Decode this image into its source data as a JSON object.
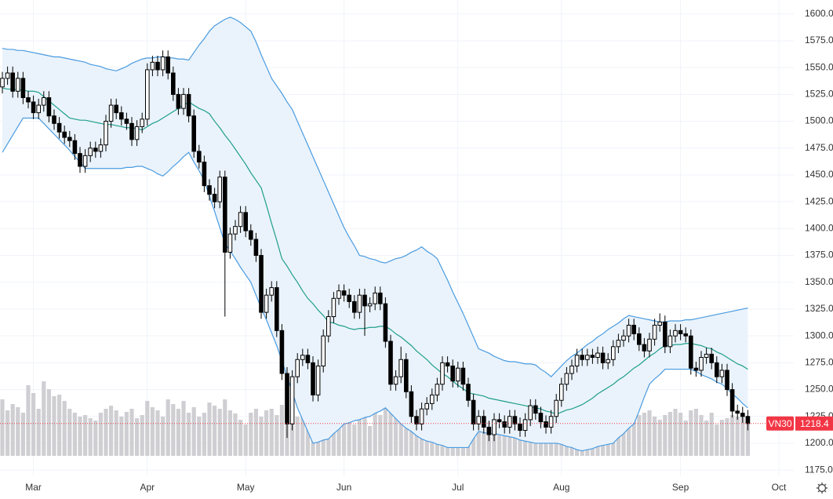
{
  "chart_data": {
    "type": "candlestick",
    "categories": [
      null,
      null,
      null,
      null,
      null,
      null,
      "Mar",
      null,
      null,
      null,
      null,
      null,
      null,
      null,
      null,
      null,
      null,
      null,
      null,
      null,
      null,
      null,
      null,
      null,
      null,
      null,
      null,
      null,
      "Apr",
      null,
      null,
      null,
      null,
      null,
      null,
      null,
      null,
      null,
      null,
      null,
      null,
      null,
      null,
      null,
      null,
      null,
      null,
      "May",
      null,
      null,
      null,
      null,
      null,
      null,
      null,
      null,
      null,
      null,
      null,
      null,
      null,
      null,
      null,
      null,
      null,
      null,
      "Jun",
      null,
      null,
      null,
      null,
      null,
      null,
      null,
      null,
      null,
      null,
      null,
      null,
      null,
      null,
      null,
      null,
      null,
      null,
      null,
      null,
      null,
      "Jul",
      null,
      null,
      null,
      null,
      null,
      null,
      null,
      null,
      null,
      null,
      null,
      null,
      null,
      null,
      null,
      null,
      null,
      null,
      null,
      "Aug",
      null,
      null,
      null,
      null,
      null,
      null,
      null,
      null,
      null,
      null,
      null,
      null,
      null,
      null,
      null,
      null,
      null,
      null,
      null,
      null,
      null,
      null,
      "Sep",
      null,
      null,
      null,
      null,
      null,
      null,
      null,
      null,
      null,
      null,
      null,
      null,
      null,
      null,
      null,
      null,
      null,
      null,
      "Oct"
    ],
    "open": [
      1532,
      1540,
      1545,
      1528,
      1540,
      1522,
      1518,
      1508,
      1515,
      1522,
      1505,
      1498,
      1490,
      1485,
      1482,
      1470,
      1458,
      1468,
      1475,
      1472,
      1478,
      1500,
      1515,
      1508,
      1502,
      1498,
      1483,
      1495,
      1502,
      1548,
      1555,
      1548,
      1560,
      1545,
      1525,
      1512,
      1525,
      1505,
      1472,
      1462,
      1440,
      1432,
      1425,
      1448,
      1378,
      1395,
      1402,
      1415,
      1398,
      1390,
      1375,
      1322,
      1338,
      1345,
      1305,
      1265,
      1218,
      1262,
      1278,
      1282,
      1275,
      1245,
      1272,
      1300,
      1318,
      1335,
      1342,
      1338,
      1332,
      1322,
      1338,
      1328,
      1330,
      1340,
      1330,
      1295,
      1255,
      1262,
      1278,
      1248,
      1225,
      1218,
      1232,
      1237,
      1245,
      1255,
      1275,
      1272,
      1258,
      1270,
      1255,
      1240,
      1218,
      1225,
      1215,
      1208,
      1222,
      1220,
      1215,
      1225,
      1218,
      1212,
      1222,
      1235,
      1228,
      1220,
      1215,
      1225,
      1240,
      1255,
      1265,
      1272,
      1282,
      1278,
      1282,
      1280,
      1284,
      1275,
      1278,
      1290,
      1296,
      1300,
      1310,
      1302,
      1292,
      1286,
      1297,
      1310,
      1313,
      1290,
      1300,
      1305,
      1302,
      1300,
      1270,
      1268,
      1280,
      1283,
      1275,
      1262,
      1268,
      1250,
      1230,
      1228,
      1225,
      null,
      null,
      null,
      null,
      null,
      null
    ],
    "high": [
      1546,
      1551,
      1551,
      1546,
      1546,
      1528,
      1524,
      1521,
      1528,
      1528,
      1511,
      1504,
      1496,
      1491,
      1488,
      1476,
      1474,
      1481,
      1481,
      1484,
      1506,
      1521,
      1521,
      1514,
      1508,
      1504,
      1501,
      1508,
      1554,
      1561,
      1561,
      1566,
      1566,
      1551,
      1531,
      1531,
      1531,
      1511,
      1478,
      1468,
      1446,
      1438,
      1454,
      1454,
      1401,
      1408,
      1421,
      1421,
      1404,
      1396,
      1381,
      1344,
      1351,
      1351,
      1311,
      1271,
      1268,
      1284,
      1288,
      1288,
      1281,
      1278,
      1306,
      1324,
      1341,
      1348,
      1348,
      1344,
      1338,
      1344,
      1344,
      1336,
      1346,
      1346,
      1336,
      1301,
      1268,
      1290,
      1284,
      1254,
      1231,
      1238,
      1243,
      1251,
      1261,
      1281,
      1281,
      1278,
      1276,
      1276,
      1261,
      1246,
      1231,
      1231,
      1221,
      1228,
      1228,
      1226,
      1231,
      1231,
      1224,
      1228,
      1241,
      1241,
      1234,
      1226,
      1231,
      1246,
      1261,
      1271,
      1278,
      1288,
      1288,
      1288,
      1288,
      1290,
      1290,
      1284,
      1296,
      1302,
      1306,
      1316,
      1316,
      1308,
      1298,
      1303,
      1316,
      1321,
      1319,
      1306,
      1311,
      1311,
      1308,
      1306,
      1276,
      1286,
      1289,
      1289,
      1281,
      1274,
      1274,
      1256,
      1236,
      1234,
      1231,
      null,
      null,
      null,
      null,
      null,
      null
    ],
    "low": [
      1526,
      1534,
      1522,
      1522,
      1516,
      1512,
      1502,
      1502,
      1509,
      1499,
      1492,
      1484,
      1479,
      1476,
      1464,
      1452,
      1452,
      1462,
      1466,
      1466,
      1472,
      1494,
      1502,
      1496,
      1492,
      1477,
      1477,
      1489,
      1496,
      1542,
      1542,
      1542,
      1539,
      1519,
      1506,
      1506,
      1499,
      1466,
      1456,
      1434,
      1426,
      1419,
      1419,
      1318,
      1372,
      1389,
      1396,
      1392,
      1384,
      1369,
      1316,
      1316,
      1332,
      1299,
      1259,
      1205,
      1212,
      1256,
      1272,
      1269,
      1239,
      1239,
      1266,
      1294,
      1312,
      1329,
      1332,
      1326,
      1316,
      1316,
      1300,
      1322,
      1324,
      1324,
      1289,
      1249,
      1249,
      1256,
      1242,
      1219,
      1212,
      1212,
      1226,
      1231,
      1239,
      1249,
      1266,
      1252,
      1252,
      1249,
      1234,
      1212,
      1212,
      1209,
      1202,
      1202,
      1214,
      1209,
      1209,
      1212,
      1206,
      1206,
      1216,
      1222,
      1214,
      1209,
      1209,
      1219,
      1234,
      1249,
      1259,
      1266,
      1272,
      1272,
      1274,
      1274,
      1269,
      1269,
      1272,
      1284,
      1290,
      1294,
      1296,
      1286,
      1280,
      1280,
      1291,
      1304,
      1284,
      1284,
      1294,
      1296,
      1294,
      1264,
      1262,
      1262,
      1274,
      1269,
      1256,
      1256,
      1244,
      1224,
      1222,
      1219,
      1212,
      null,
      null,
      null,
      null,
      null,
      null
    ],
    "close": [
      1540,
      1545,
      1528,
      1540,
      1522,
      1518,
      1508,
      1515,
      1522,
      1505,
      1498,
      1490,
      1485,
      1482,
      1470,
      1458,
      1468,
      1475,
      1472,
      1478,
      1500,
      1515,
      1508,
      1502,
      1498,
      1483,
      1495,
      1502,
      1548,
      1555,
      1548,
      1560,
      1545,
      1525,
      1512,
      1525,
      1505,
      1472,
      1462,
      1440,
      1432,
      1425,
      1448,
      1378,
      1395,
      1402,
      1415,
      1398,
      1390,
      1375,
      1322,
      1338,
      1345,
      1305,
      1265,
      1218,
      1262,
      1278,
      1282,
      1275,
      1245,
      1272,
      1300,
      1318,
      1335,
      1342,
      1338,
      1332,
      1322,
      1338,
      1328,
      1330,
      1340,
      1330,
      1295,
      1255,
      1262,
      1278,
      1248,
      1225,
      1218,
      1232,
      1237,
      1245,
      1255,
      1275,
      1272,
      1258,
      1270,
      1255,
      1240,
      1218,
      1225,
      1215,
      1208,
      1222,
      1220,
      1215,
      1225,
      1218,
      1212,
      1222,
      1235,
      1228,
      1220,
      1215,
      1225,
      1240,
      1255,
      1265,
      1272,
      1282,
      1278,
      1282,
      1280,
      1284,
      1275,
      1278,
      1290,
      1296,
      1300,
      1310,
      1302,
      1292,
      1286,
      1297,
      1310,
      1313,
      1290,
      1300,
      1305,
      1302,
      1300,
      1270,
      1268,
      1280,
      1283,
      1275,
      1262,
      1268,
      1250,
      1230,
      1228,
      1225,
      1218.4,
      null,
      null,
      null,
      null,
      null,
      null
    ],
    "volume": [
      72,
      58,
      66,
      62,
      55,
      90,
      80,
      60,
      95,
      85,
      76,
      78,
      70,
      60,
      55,
      50,
      52,
      48,
      45,
      55,
      60,
      64,
      58,
      50,
      56,
      60,
      48,
      52,
      70,
      62,
      58,
      50,
      72,
      66,
      60,
      70,
      55,
      62,
      50,
      55,
      68,
      64,
      60,
      72,
      58,
      54,
      46,
      40,
      55,
      60,
      50,
      58,
      60,
      52,
      65,
      62,
      58,
      50,
      55,
      60,
      48,
      52,
      55,
      58,
      60,
      56,
      50,
      45,
      40,
      48,
      50,
      38,
      55,
      52,
      66,
      60,
      50,
      48,
      55,
      62,
      58,
      52,
      45,
      48,
      50,
      55,
      60,
      52,
      50,
      45,
      58,
      62,
      55,
      48,
      44,
      40,
      50,
      55,
      48,
      45,
      52,
      40,
      38,
      45,
      50,
      42,
      48,
      55,
      60,
      58,
      52,
      55,
      50,
      48,
      60,
      55,
      52,
      58,
      50,
      45,
      60,
      55,
      48,
      52,
      55,
      58,
      50,
      46,
      52,
      56,
      60,
      55,
      45,
      58,
      60,
      52,
      45,
      55,
      40,
      46,
      48,
      52,
      50,
      55,
      42,
      null,
      null,
      null,
      null,
      null,
      null
    ],
    "bands": {
      "upper": [
        1568,
        1567,
        1567,
        1566,
        1566,
        1565,
        1564,
        1563,
        1562,
        1561,
        1560,
        1560,
        1559,
        1558,
        1557,
        1556,
        1555,
        1553,
        1552,
        1551,
        1549,
        1548,
        1547,
        1549,
        1551,
        1554,
        1556,
        1558,
        1559,
        1559,
        1560,
        1560,
        1559,
        1559,
        1558,
        1558,
        1557,
        1564,
        1571,
        1577,
        1584,
        1589,
        1592,
        1595,
        1597,
        1595,
        1592,
        1588,
        1584,
        1574,
        1562,
        1551,
        1540,
        1533,
        1526,
        1518,
        1511,
        1500,
        1489,
        1478,
        1467,
        1456,
        1445,
        1434,
        1423,
        1412,
        1401,
        1392,
        1384,
        1375,
        1374,
        1372,
        1371,
        1369,
        1368,
        1370,
        1372,
        1373,
        1375,
        1378,
        1380,
        1383,
        1379,
        1376,
        1372,
        1362,
        1352,
        1341,
        1331,
        1321,
        1310,
        1299,
        1288,
        1286,
        1284,
        1281,
        1279,
        1277,
        1276,
        1276,
        1275,
        1274,
        1274,
        1273,
        1269,
        1266,
        1262,
        1267,
        1272,
        1277,
        1281,
        1284,
        1288,
        1292,
        1295,
        1299,
        1302,
        1306,
        1309,
        1312,
        1316,
        1319,
        1318,
        1317,
        1316,
        1315,
        1314,
        1313,
        1313,
        1314,
        1314,
        1314,
        1315,
        1315,
        1316,
        1317,
        1318,
        1319,
        1320,
        1321,
        1322,
        1323,
        1324,
        1325,
        1326,
        null,
        null,
        null,
        null,
        null,
        null
      ],
      "middle": [
        1531,
        1530,
        1530,
        1529,
        1529,
        1528,
        1528,
        1527,
        1523,
        1519,
        1515,
        1511,
        1507,
        1503,
        1502,
        1501,
        1501,
        1500,
        1499,
        1498,
        1497,
        1497,
        1496,
        1495,
        1494,
        1494,
        1493,
        1492,
        1495,
        1498,
        1500,
        1503,
        1506,
        1509,
        1512,
        1515,
        1518,
        1515,
        1512,
        1510,
        1507,
        1500,
        1494,
        1487,
        1481,
        1474,
        1467,
        1460,
        1452,
        1445,
        1438,
        1422,
        1405,
        1389,
        1372,
        1365,
        1357,
        1350,
        1342,
        1335,
        1330,
        1324,
        1319,
        1313,
        1312,
        1310,
        1309,
        1307,
        1306,
        1307,
        1307,
        1308,
        1308,
        1309,
        1309,
        1306,
        1302,
        1299,
        1295,
        1291,
        1286,
        1282,
        1278,
        1273,
        1269,
        1265,
        1262,
        1258,
        1254,
        1251,
        1247,
        1246,
        1245,
        1244,
        1242,
        1241,
        1240,
        1239,
        1238,
        1237,
        1236,
        1235,
        1234,
        1233,
        1232,
        1230,
        1229,
        1227,
        1229,
        1231,
        1232,
        1234,
        1236,
        1239,
        1242,
        1246,
        1249,
        1252,
        1255,
        1259,
        1262,
        1266,
        1270,
        1273,
        1277,
        1281,
        1284,
        1288,
        1291,
        1291,
        1292,
        1292,
        1293,
        1293,
        1292,
        1291,
        1289,
        1288,
        1285,
        1283,
        1280,
        1277,
        1274,
        1272,
        1269,
        null,
        null,
        null,
        null,
        null,
        null
      ],
      "lower": [
        1471,
        1479,
        1487,
        1495,
        1503,
        1503,
        1503,
        1503,
        1498,
        1493,
        1488,
        1483,
        1478,
        1473,
        1467,
        1462,
        1456,
        1456,
        1456,
        1456,
        1456,
        1456,
        1456,
        1456,
        1457,
        1457,
        1458,
        1458,
        1456,
        1454,
        1451,
        1449,
        1453,
        1458,
        1462,
        1467,
        1471,
        1462,
        1454,
        1445,
        1430,
        1416,
        1401,
        1386,
        1379,
        1372,
        1364,
        1357,
        1350,
        1338,
        1326,
        1315,
        1303,
        1291,
        1277,
        1262,
        1248,
        1233,
        1222,
        1211,
        1200,
        1201,
        1203,
        1204,
        1209,
        1213,
        1218,
        1219,
        1221,
        1222,
        1224,
        1225,
        1228,
        1230,
        1233,
        1228,
        1223,
        1218,
        1214,
        1211,
        1207,
        1204,
        1202,
        1201,
        1199,
        1198,
        1196,
        1196,
        1196,
        1196,
        1196,
        1204,
        1211,
        1210,
        1209,
        1209,
        1208,
        1207,
        1206,
        1205,
        1203,
        1202,
        1201,
        1200,
        1200,
        1200,
        1200,
        1200,
        1199,
        1197,
        1196,
        1194,
        1193,
        1194,
        1195,
        1197,
        1198,
        1199,
        1200,
        1205,
        1209,
        1214,
        1218,
        1230,
        1243,
        1255,
        1260,
        1264,
        1269,
        1269,
        1269,
        1269,
        1269,
        1269,
        1267,
        1264,
        1262,
        1260,
        1257,
        1255,
        1251,
        1246,
        1242,
        1237,
        1233,
        null,
        null,
        null,
        null,
        null,
        null
      ],
      "color": "#4a9be0",
      "middle_color": "#1f9e8c",
      "fill": "#eaf3fb"
    },
    "up_color": "#ffffff",
    "down_color": "#000000",
    "wick_color": "#000000",
    "volume_color": "#cfcfd3",
    "volume_ylim": [
      0,
      300
    ],
    "price_tag": {
      "name": "VN30",
      "value": 1218.4,
      "color": "#f23645"
    },
    "ylim": [
      1170,
      1613
    ],
    "yticks": [
      {
        "value": 1175,
        "label": "1175.0"
      },
      {
        "value": 1200,
        "label": "1200.0"
      },
      {
        "value": 1225,
        "label": "1225.0"
      },
      {
        "value": 1250,
        "label": "1250.0"
      },
      {
        "value": 1275,
        "label": "1275.0"
      },
      {
        "value": 1300,
        "label": "1300.0"
      },
      {
        "value": 1325,
        "label": "1325.0"
      },
      {
        "value": 1350,
        "label": "1350.0"
      },
      {
        "value": 1375,
        "label": "1375.0"
      },
      {
        "value": 1400,
        "label": "1400.0"
      },
      {
        "value": 1425,
        "label": "1425.0"
      },
      {
        "value": 1450,
        "label": "1450.0"
      },
      {
        "value": 1475,
        "label": "1475.0"
      },
      {
        "value": 1500,
        "label": "1500.0"
      },
      {
        "value": 1525,
        "label": "1525.0"
      },
      {
        "value": 1550,
        "label": "1550.0"
      },
      {
        "value": 1575,
        "label": "1575.0"
      },
      {
        "value": 1600,
        "label": "1600.0"
      }
    ],
    "grid": true
  }
}
